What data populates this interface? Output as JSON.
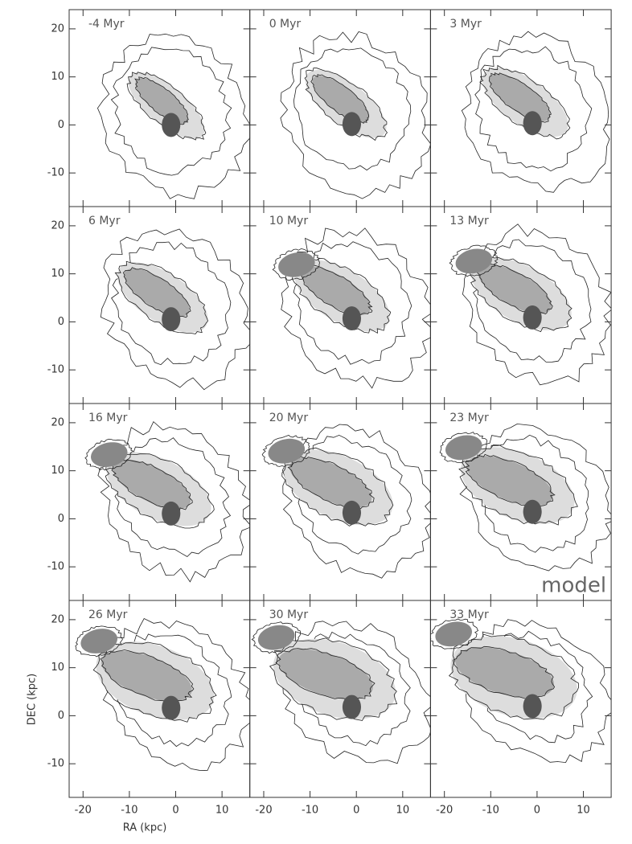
{
  "chart_data": {
    "type": "contour-grid",
    "panels": [
      "-4 Myr",
      "0 Myr",
      "3 Myr",
      "6 Myr",
      "10 Myr",
      "13 Myr",
      "16 Myr",
      "20 Myr",
      "23 Myr",
      "26 Myr",
      "30 Myr",
      "33 Myr"
    ],
    "columns": 3,
    "xlabel": "RA (kpc)",
    "ylabel": "DEC (kpc)",
    "annotation": "model",
    "xlim": [
      -23,
      16
    ],
    "ylim": [
      -17,
      24
    ],
    "xticks": [
      -20,
      -10,
      0,
      10
    ],
    "yticks": [
      -10,
      0,
      10,
      20
    ]
  }
}
